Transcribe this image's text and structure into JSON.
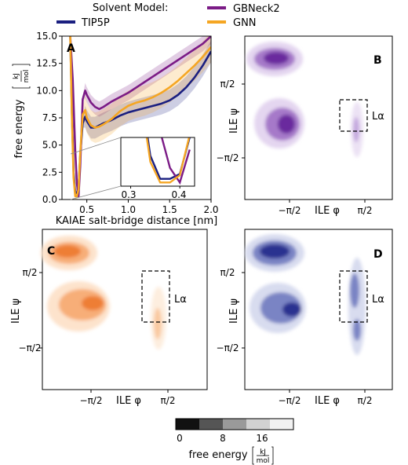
{
  "legend": {
    "title": "Solvent Model:",
    "entries": [
      {
        "name": "TIP5P",
        "color": "#1a1f80"
      },
      {
        "name": "GBNeck2",
        "color": "#7b1b86"
      },
      {
        "name": "GNN",
        "color": "#f5a623"
      }
    ]
  },
  "chart_data": [
    {
      "panel": "A",
      "type": "line",
      "xlabel": "KAIAE salt-bridge distance [nm]",
      "ylabel": "free energy",
      "ylabel_unit_num": "kJ",
      "ylabel_unit_den": "mol",
      "xlim": [
        0.2,
        2.0
      ],
      "ylim": [
        0,
        15
      ],
      "xticks": [
        "0.5",
        "1.0",
        "1.5",
        "2.0"
      ],
      "yticks": [
        "0.0",
        "2.5",
        "5.0",
        "7.5",
        "10.0",
        "12.5",
        "15.0"
      ],
      "series": [
        {
          "name": "TIP5P",
          "color": "#1a1f80",
          "x": [
            0.3,
            0.32,
            0.34,
            0.36,
            0.38,
            0.4,
            0.42,
            0.45,
            0.48,
            0.5,
            0.55,
            0.6,
            0.65,
            0.7,
            0.8,
            0.9,
            1.0,
            1.1,
            1.2,
            1.3,
            1.4,
            1.5,
            1.6,
            1.7,
            1.8,
            1.9,
            2.0
          ],
          "y": [
            15.0,
            8.0,
            2.5,
            0.6,
            0.6,
            1.0,
            4.0,
            7.0,
            7.6,
            7.2,
            6.6,
            6.6,
            6.8,
            7.0,
            7.3,
            7.7,
            8.0,
            8.2,
            8.4,
            8.6,
            8.8,
            9.1,
            9.6,
            10.3,
            11.2,
            12.3,
            13.6
          ]
        },
        {
          "name": "GBNeck2",
          "color": "#7b1b86",
          "x": [
            0.3,
            0.33,
            0.36,
            0.38,
            0.4,
            0.42,
            0.45,
            0.48,
            0.5,
            0.55,
            0.6,
            0.65,
            0.7,
            0.8,
            0.9,
            1.0,
            1.1,
            1.2,
            1.3,
            1.4,
            1.5,
            1.6,
            1.7,
            1.8,
            1.9,
            2.0
          ],
          "y": [
            15.0,
            11.0,
            4.5,
            1.5,
            0.3,
            3.0,
            9.2,
            10.0,
            9.6,
            8.9,
            8.5,
            8.3,
            8.5,
            9.0,
            9.4,
            9.8,
            10.3,
            10.8,
            11.3,
            11.8,
            12.3,
            12.8,
            13.3,
            13.8,
            14.3,
            15.0
          ]
        },
        {
          "name": "GNN",
          "color": "#f5a623",
          "x": [
            0.3,
            0.32,
            0.34,
            0.36,
            0.38,
            0.4,
            0.42,
            0.45,
            0.48,
            0.5,
            0.55,
            0.6,
            0.65,
            0.7,
            0.8,
            0.9,
            1.0,
            1.1,
            1.2,
            1.3,
            1.4,
            1.5,
            1.6,
            1.7,
            1.8,
            1.9,
            2.0
          ],
          "y": [
            15.0,
            7.5,
            2.0,
            0.3,
            0.3,
            0.9,
            4.2,
            7.8,
            8.2,
            7.5,
            6.8,
            6.6,
            6.7,
            6.9,
            7.4,
            8.1,
            8.6,
            8.9,
            9.1,
            9.4,
            9.8,
            10.3,
            10.9,
            11.6,
            12.3,
            13.1,
            14.0
          ]
        }
      ],
      "inset": {
        "xlim": [
          0.28,
          0.43
        ],
        "ylim": [
          0,
          4
        ],
        "xticks": [
          "0.3",
          "0.4"
        ]
      }
    },
    {
      "panel": "B",
      "type": "heatmap",
      "model": "GBNeck2",
      "xlabel": "ILE φ",
      "ylabel": "ILE ψ",
      "xticks": [
        "−π/2",
        "π/2"
      ],
      "yticks": [
        "π/2",
        "−π/2"
      ],
      "annotation": "Lα",
      "colormap": "purple"
    },
    {
      "panel": "C",
      "type": "heatmap",
      "model": "GNN",
      "xlabel": "ILE φ",
      "ylabel": "ILE ψ",
      "xticks": [
        "−π/2",
        "π/2"
      ],
      "yticks": [
        "π/2",
        "−π/2"
      ],
      "annotation": "Lα",
      "colormap": "orange"
    },
    {
      "panel": "D",
      "type": "heatmap",
      "model": "TIP5P",
      "xlabel": "ILE φ",
      "ylabel": "ILE ψ",
      "xticks": [
        "−π/2",
        "π/2"
      ],
      "yticks": [
        "π/2",
        "−π/2"
      ],
      "annotation": "Lα",
      "colormap": "blue"
    }
  ],
  "colorbar": {
    "ticks": [
      "0",
      "8",
      "16"
    ],
    "label": "free energy",
    "unit_num": "kJ",
    "unit_den": "mol"
  }
}
